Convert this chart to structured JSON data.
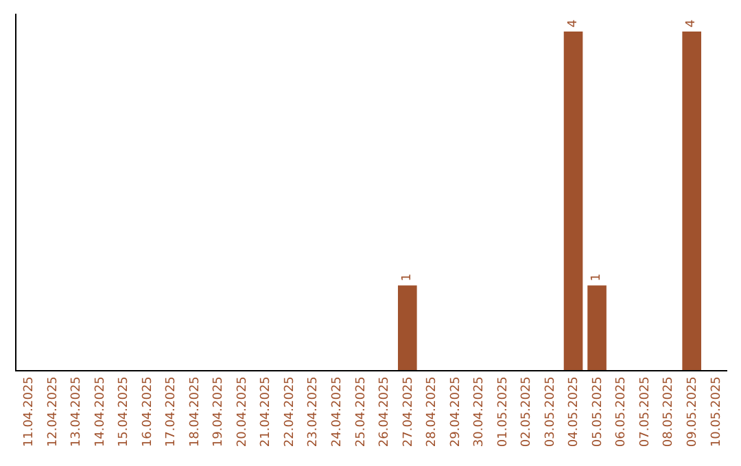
{
  "chart_data": {
    "type": "bar",
    "categories": [
      "11.04.2025",
      "12.04.2025",
      "13.04.2025",
      "14.04.2025",
      "15.04.2025",
      "16.04.2025",
      "17.04.2025",
      "18.04.2025",
      "19.04.2025",
      "20.04.2025",
      "21.04.2025",
      "22.04.2025",
      "23.04.2025",
      "24.04.2025",
      "25.04.2025",
      "26.04.2025",
      "27.04.2025",
      "28.04.2025",
      "29.04.2025",
      "30.04.2025",
      "01.05.2025",
      "02.05.2025",
      "03.05.2025",
      "04.05.2025",
      "05.05.2025",
      "06.05.2025",
      "07.05.2025",
      "08.05.2025",
      "09.05.2025",
      "10.05.2025"
    ],
    "values": [
      null,
      null,
      null,
      null,
      null,
      null,
      null,
      null,
      null,
      null,
      null,
      null,
      null,
      null,
      null,
      null,
      1,
      null,
      null,
      null,
      null,
      null,
      null,
      4,
      1,
      null,
      null,
      null,
      4,
      null
    ],
    "value_labels": [
      null,
      null,
      null,
      null,
      null,
      null,
      null,
      null,
      null,
      null,
      null,
      null,
      null,
      null,
      null,
      null,
      "1",
      null,
      null,
      null,
      null,
      null,
      null,
      "4",
      "1",
      null,
      null,
      null,
      "4",
      null
    ],
    "color": "#a0522d",
    "tick_labels": "x",
    "grid": false
  }
}
